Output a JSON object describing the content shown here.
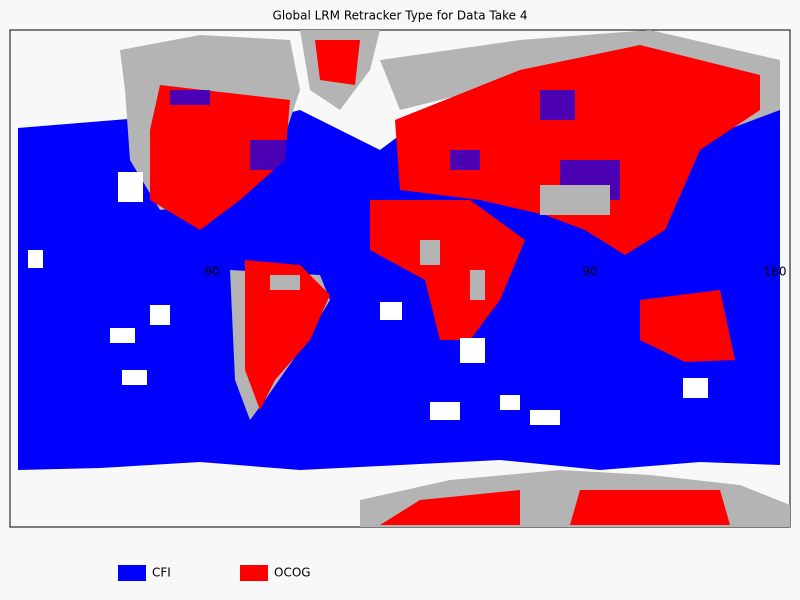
{
  "title": "Global LRM Retracker Type for Data Take 4",
  "legend": [
    {
      "label": "CFI",
      "color": "#0000ff"
    },
    {
      "label": "OCOG",
      "color": "#ff0000"
    }
  ],
  "longitude_labels": [
    "-90",
    "90",
    "180"
  ],
  "land_color": "#b4b4b4"
}
